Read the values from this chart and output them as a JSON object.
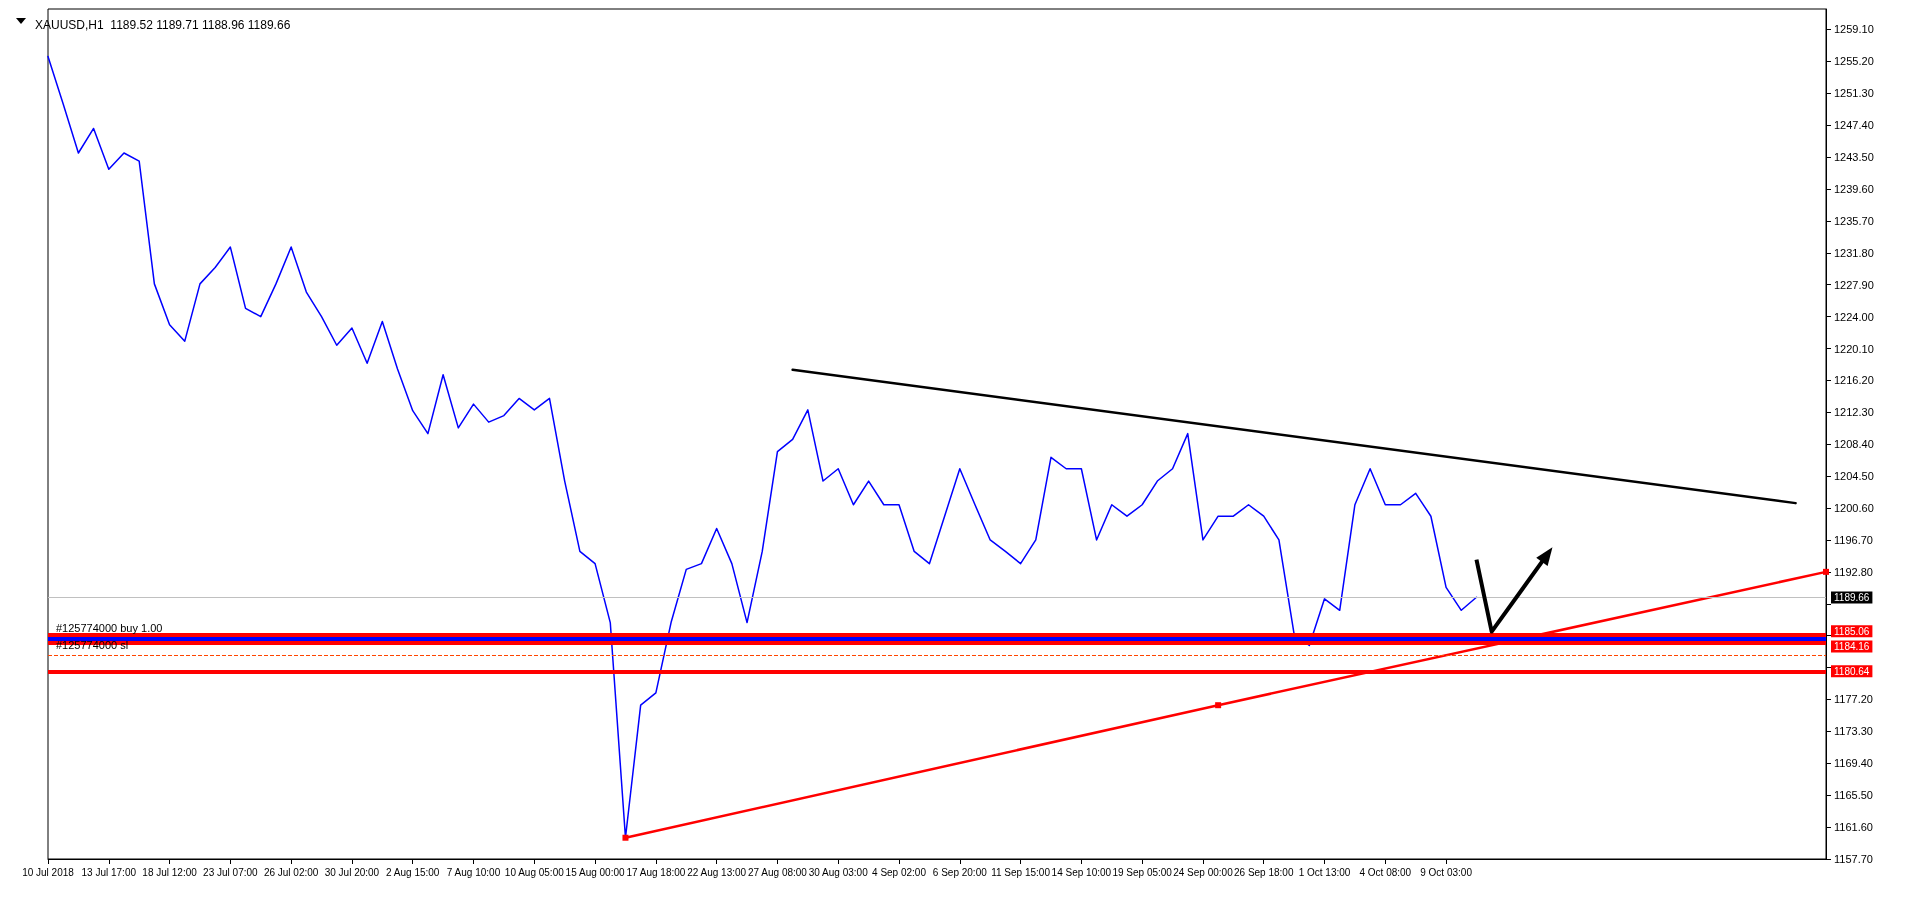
{
  "chart_data": {
    "type": "line",
    "title": "XAUUSD,H1  1189.52 1189.71 1188.96 1189.66",
    "categories": [
      "10 Jul 2018",
      null,
      null,
      null,
      "13 Jul 17:00",
      null,
      null,
      null,
      "18 Jul 12:00",
      null,
      null,
      null,
      "23 Jul 07:00",
      null,
      null,
      null,
      "26 Jul 02:00",
      null,
      null,
      null,
      "30 Jul 20:00",
      null,
      null,
      null,
      "2 Aug 15:00",
      null,
      null,
      null,
      "7 Aug 10:00",
      null,
      null,
      null,
      "10 Aug 05:00",
      null,
      null,
      null,
      "15 Aug 00:00",
      null,
      null,
      null,
      "17 Aug 18:00",
      null,
      null,
      null,
      "22 Aug 13:00",
      null,
      null,
      null,
      "27 Aug 08:00",
      null,
      null,
      null,
      "30 Aug 03:00",
      null,
      null,
      null,
      "4 Sep 02:00",
      null,
      null,
      null,
      "6 Sep 20:00",
      null,
      null,
      null,
      "11 Sep 15:00",
      null,
      null,
      null,
      "14 Sep 10:00",
      null,
      null,
      null,
      "19 Sep 05:00",
      null,
      null,
      null,
      "24 Sep 00:00",
      null,
      null,
      null,
      "26 Sep 18:00",
      null,
      null,
      null,
      "1 Oct 13:00",
      null,
      null,
      null,
      "4 Oct 08:00",
      null,
      null,
      null,
      "9 Oct 03:00",
      null,
      null,
      null,
      null,
      null,
      null,
      null,
      null,
      null,
      null,
      null,
      null,
      null,
      null,
      null,
      null,
      null,
      null,
      null,
      null,
      null,
      null,
      null,
      null,
      null
    ],
    "ylim": [
      1157.7,
      1261.6
    ],
    "yticks": [
      {
        "value": 1157.7,
        "label": "1157.70"
      },
      {
        "value": 1161.6,
        "label": "1161.60"
      },
      {
        "value": 1165.5,
        "label": "1165.50"
      },
      {
        "value": 1169.4,
        "label": "1169.40"
      },
      {
        "value": 1173.3,
        "label": "1173.30"
      },
      {
        "value": 1177.2,
        "label": "1177.20"
      },
      {
        "value": 1181.1,
        "label": null
      },
      {
        "value": 1185.0,
        "label": null
      },
      {
        "value": 1188.9,
        "label": null
      },
      {
        "value": 1192.8,
        "label": "1192.80"
      },
      {
        "value": 1196.7,
        "label": "1196.70"
      },
      {
        "value": 1200.6,
        "label": "1200.60"
      },
      {
        "value": 1204.5,
        "label": "1204.50"
      },
      {
        "value": 1208.4,
        "label": "1208.40"
      },
      {
        "value": 1212.3,
        "label": "1212.30"
      },
      {
        "value": 1216.2,
        "label": "1216.20"
      },
      {
        "value": 1220.1,
        "label": "1220.10"
      },
      {
        "value": 1224.0,
        "label": "1224.00"
      },
      {
        "value": 1227.9,
        "label": "1227.90"
      },
      {
        "value": 1231.8,
        "label": "1231.80"
      },
      {
        "value": 1235.7,
        "label": "1235.70"
      },
      {
        "value": 1239.6,
        "label": "1239.60"
      },
      {
        "value": 1243.5,
        "label": "1243.50"
      },
      {
        "value": 1247.4,
        "label": "1247.40"
      },
      {
        "value": 1251.3,
        "label": "1251.30"
      },
      {
        "value": 1255.2,
        "label": "1255.20"
      },
      {
        "value": 1259.1,
        "label": "1259.10"
      }
    ],
    "grid": false,
    "marker": "none",
    "line_style": "solid",
    "series": [
      {
        "color": "#0000ff",
        "values": [
          1255.8,
          1250,
          1244,
          1247,
          1242,
          1244,
          1243,
          1228,
          1223,
          1221,
          1228,
          1230,
          1232.5,
          1225,
          1224,
          1228,
          1232.5,
          1227,
          1224,
          1220.5,
          1222.6,
          1218.3,
          1223.4,
          1217.6,
          1212.5,
          1209.7,
          1216.9,
          1210.4,
          1213.3,
          1211.1,
          1211.9,
          1214,
          1212.6,
          1214,
          1203.9,
          1195.3,
          1193.8,
          1186.6,
          1160.3,
          1176.5,
          1178,
          1186.6,
          1193.1,
          1193.8,
          1198.1,
          1193.8,
          1186.6,
          1195.3,
          1207.5,
          1209,
          1212.6,
          1203.9,
          1205.4,
          1201,
          1203.9,
          1201,
          1201,
          1195.3,
          1193.8,
          1199.6,
          1205.4,
          1201,
          1196.7,
          1195.3,
          1193.8,
          1196.7,
          1206.8,
          1205.4,
          1205.4,
          1196.7,
          1201,
          1199.6,
          1201,
          1203.9,
          1205.4,
          1209.7,
          1196.7,
          1199.6,
          1199.6,
          1201,
          1199.6,
          1196.7,
          1185.2,
          1183.8,
          1189.5,
          1188.1,
          1201,
          1205.4,
          1201,
          1201,
          1202.4,
          1199.6,
          1190.9,
          1188.1,
          1189.7,
          null,
          null,
          null,
          null,
          null,
          null,
          null,
          null,
          null,
          null,
          null,
          null,
          null,
          null,
          null,
          null,
          null,
          null,
          null,
          null,
          null,
          null,
          null
        ]
      },
      {
        "type": "line",
        "color": "#000000",
        "marker": "none",
        "values": [
          null,
          null,
          null,
          null,
          null,
          null,
          null,
          null,
          null,
          null,
          null,
          null,
          null,
          null,
          null,
          null,
          null,
          null,
          null,
          null,
          null,
          null,
          null,
          null,
          null,
          null,
          null,
          null,
          null,
          null,
          null,
          null,
          null,
          null,
          null,
          null,
          null,
          null,
          null,
          null,
          null,
          null,
          null,
          null,
          null,
          null,
          null,
          null,
          null,
          1217.5,
          null,
          null,
          null,
          null,
          null,
          null,
          null,
          null,
          null,
          null,
          null,
          null,
          null,
          null,
          null,
          null,
          null,
          null,
          null,
          null,
          null,
          null,
          null,
          null,
          null,
          null,
          null,
          null,
          null,
          null,
          null,
          null,
          null,
          null,
          null,
          null,
          null,
          null,
          null,
          null,
          null,
          null,
          null,
          null,
          null,
          null,
          null,
          null,
          null,
          null,
          null,
          null,
          null,
          null,
          null,
          null,
          null,
          null,
          null,
          null,
          null,
          null,
          null,
          null,
          null,
          1201.2,
          null,
          null
        ]
      },
      {
        "type": "line",
        "color": "#ff0000",
        "marker": "square",
        "values": [
          null,
          null,
          null,
          null,
          null,
          null,
          null,
          null,
          null,
          null,
          null,
          null,
          null,
          null,
          null,
          null,
          null,
          null,
          null,
          null,
          null,
          null,
          null,
          null,
          null,
          null,
          null,
          null,
          null,
          null,
          null,
          null,
          null,
          null,
          null,
          null,
          null,
          null,
          1160.3,
          null,
          null,
          null,
          null,
          null,
          null,
          null,
          null,
          null,
          null,
          null,
          null,
          null,
          null,
          null,
          null,
          null,
          null,
          null,
          null,
          null,
          null,
          null,
          null,
          null,
          null,
          null,
          null,
          null,
          null,
          null,
          null,
          null,
          null,
          null,
          null,
          null,
          null,
          1176.5,
          null,
          null,
          null,
          null,
          null,
          null,
          null,
          null,
          null,
          null,
          null,
          null,
          null,
          null,
          null,
          null,
          null,
          null,
          null,
          null,
          null,
          null,
          null,
          null,
          null,
          null,
          null,
          null,
          null,
          null,
          null,
          null,
          null,
          null,
          null,
          null,
          null,
          null,
          null,
          1192.8
        ]
      }
    ],
    "ref_lines": [
      {
        "axis": "y",
        "value": 1189.66,
        "label": "1189.66",
        "color": "#c0c0c0"
      },
      {
        "axis": "y",
        "value": 1185.06,
        "label": "1185.06",
        "color": "#ff0000"
      },
      {
        "axis": "y",
        "value": 1184.6,
        "label": "#125774000 buy 1.00",
        "color": "#0000ff"
      },
      {
        "axis": "y",
        "value": 1184.16,
        "label": "1184.16",
        "color": "#ff0000"
      },
      {
        "axis": "y",
        "value": 1182.6,
        "label": "#125774000 sl",
        "color": "#ff4500",
        "line_style": "dashed"
      },
      {
        "axis": "y",
        "value": 1180.64,
        "label": "1180.64",
        "color": "#ff0000"
      }
    ]
  }
}
